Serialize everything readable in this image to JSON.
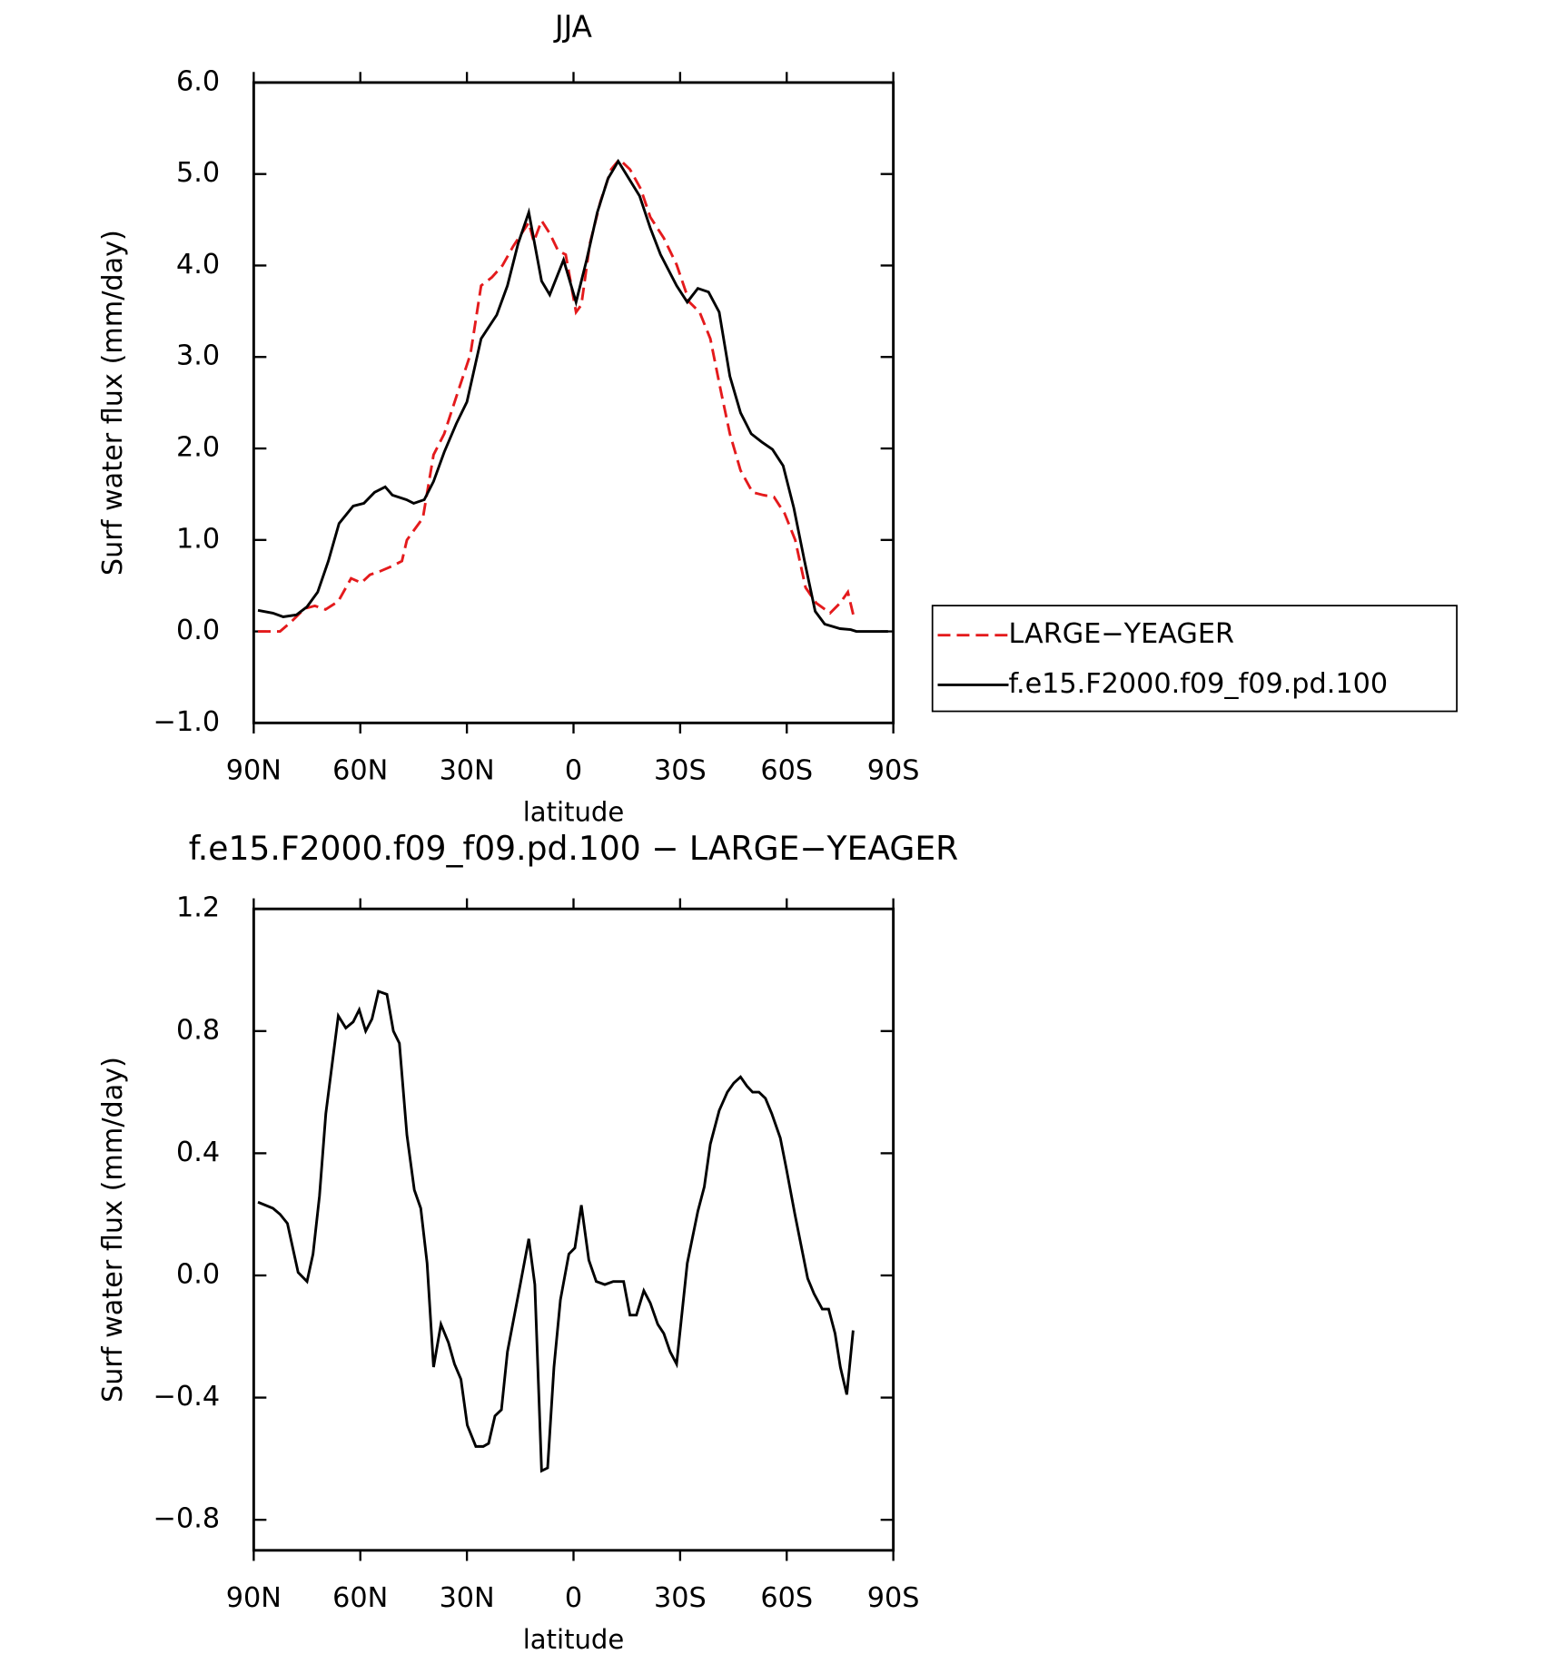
{
  "chart_data": [
    {
      "type": "line",
      "title": "JJA",
      "xlabel": "latitude",
      "ylabel": "Surf water flux (mm/day)",
      "xlim": [
        90,
        -90
      ],
      "xticks": [
        {
          "value": 90,
          "label": "90N"
        },
        {
          "value": 60,
          "label": "60N"
        },
        {
          "value": 30,
          "label": "30N"
        },
        0,
        {
          "value": -30,
          "label": "30S"
        },
        {
          "value": -60,
          "label": "60S"
        },
        {
          "value": -90,
          "label": "90S"
        }
      ],
      "ylim": [
        -1,
        6
      ],
      "yticks": [
        {
          "value": -1,
          "label": "−1.0"
        },
        {
          "value": 0,
          "label": "0.0"
        },
        {
          "value": 1,
          "label": "1.0"
        },
        {
          "value": 2,
          "label": "2.0"
        },
        {
          "value": 3,
          "label": "3.0"
        },
        {
          "value": 4,
          "label": "4.0"
        },
        {
          "value": 5,
          "label": "5.0"
        },
        {
          "value": 6,
          "label": "6.0"
        }
      ],
      "legend": "right",
      "series": [
        {
          "name": "LARGE−YEAGER",
          "color": "#e41a1c",
          "linestyle": "dashed",
          "x": [
            88.8,
            82.6,
            79.6,
            75.7,
            72.8,
            69.8,
            66.2,
            62.6,
            59.7,
            57.3,
            54.3,
            50.7,
            48.3,
            46.9,
            42.4,
            39.4,
            36.4,
            32,
            29,
            26,
            23,
            20,
            17,
            12.6,
            11.2,
            9,
            6.7,
            4.3,
            2.2,
            -0.7,
            -2.2,
            -4.6,
            -7.6,
            -10.6,
            -12.9,
            -15.9,
            -18.9,
            -21.6,
            -25.4,
            -29,
            -32.6,
            -35.5,
            -38.5,
            -41.5,
            -44,
            -47,
            -50.4,
            -53.4,
            -56.4,
            -59.4,
            -62.4,
            -65.3,
            -68.3,
            -72.2,
            -75,
            -77.2,
            -79
          ],
          "values": [
            0.0,
            0.0,
            0.1,
            0.25,
            0.28,
            0.24,
            0.33,
            0.58,
            0.53,
            0.62,
            0.66,
            0.72,
            0.77,
            1.0,
            1.24,
            1.93,
            2.16,
            2.68,
            3.03,
            3.78,
            3.87,
            4.0,
            4.21,
            4.47,
            4.26,
            4.49,
            4.35,
            4.16,
            4.12,
            3.49,
            3.57,
            4.24,
            4.7,
            5.05,
            5.16,
            5.05,
            4.84,
            4.53,
            4.3,
            4.01,
            3.6,
            3.49,
            3.2,
            2.62,
            2.16,
            1.76,
            1.52,
            1.49,
            1.47,
            1.29,
            1.0,
            0.48,
            0.31,
            0.2,
            0.31,
            0.43,
            0.14
          ]
        },
        {
          "name": "f.e15.F2000.f09_f09.pd.100",
          "color": "#000000",
          "linestyle": "solid",
          "x": [
            88.8,
            84.6,
            81.7,
            78,
            75,
            72,
            69,
            66,
            62,
            59,
            56,
            53,
            51,
            47,
            45,
            42,
            39.4,
            36.4,
            33,
            30,
            26,
            21.6,
            18.6,
            15.6,
            12.6,
            9,
            6.7,
            2.8,
            -0.7,
            -3.7,
            -6.7,
            -9.7,
            -12.6,
            -15.6,
            -18.6,
            -21.6,
            -24.5,
            -29,
            -32,
            -35,
            -38,
            -41,
            -44,
            -47,
            -50,
            -53,
            -56,
            -59,
            -62,
            -65,
            -68,
            -70.7,
            -75,
            -78,
            -79.6,
            -82.6,
            -88.5
          ],
          "values": [
            0.23,
            0.2,
            0.16,
            0.18,
            0.27,
            0.43,
            0.77,
            1.18,
            1.37,
            1.4,
            1.52,
            1.58,
            1.49,
            1.44,
            1.4,
            1.44,
            1.64,
            1.96,
            2.27,
            2.51,
            3.2,
            3.46,
            3.78,
            4.24,
            4.58,
            3.83,
            3.68,
            4.06,
            3.6,
            4.06,
            4.58,
            4.95,
            5.14,
            4.95,
            4.76,
            4.41,
            4.12,
            3.78,
            3.6,
            3.75,
            3.71,
            3.49,
            2.79,
            2.39,
            2.16,
            2.07,
            1.99,
            1.81,
            1.35,
            0.77,
            0.22,
            0.08,
            0.03,
            0.02,
            0.0,
            0.0,
            0.0
          ]
        }
      ]
    },
    {
      "type": "line",
      "title": "f.e15.F2000.f09_f09.pd.100 − LARGE−YEAGER",
      "xlabel": "latitude",
      "ylabel": "Surf water flux (mm/day)",
      "xlim": [
        90,
        -90
      ],
      "xticks": [
        {
          "value": 90,
          "label": "90N"
        },
        {
          "value": 60,
          "label": "60N"
        },
        {
          "value": 30,
          "label": "30N"
        },
        0,
        {
          "value": -30,
          "label": "30S"
        },
        {
          "value": -60,
          "label": "60S"
        },
        {
          "value": -90,
          "label": "90S"
        }
      ],
      "ylim": [
        -0.9,
        1.2
      ],
      "yticks": [
        {
          "value": -0.8,
          "label": "−0.8"
        },
        {
          "value": -0.4,
          "label": "−0.4"
        },
        {
          "value": 0,
          "label": "0.0"
        },
        0.4,
        0.8,
        1.2
      ],
      "series": [
        {
          "color": "#000000",
          "linestyle": "solid",
          "x": [
            88.8,
            84.6,
            82.6,
            80.5,
            77.5,
            75,
            73.3,
            71.5,
            69.7,
            66.2,
            64.1,
            62,
            60.3,
            58.5,
            56.7,
            54.9,
            52.5,
            50.7,
            49,
            46.9,
            44.8,
            43,
            41.2,
            39.4,
            37.3,
            35.2,
            33.5,
            31.7,
            29.9,
            27.5,
            25.4,
            23.9,
            22.1,
            20.3,
            18.6,
            15,
            12.6,
            10.9,
            9,
            7.3,
            5.5,
            3.7,
            1.3,
            -0.4,
            -2.2,
            -4.3,
            -6.4,
            -8.8,
            -11.2,
            -14.1,
            -15.9,
            -17.7,
            -19.8,
            -21.6,
            -23.7,
            -25.4,
            -27.2,
            -29,
            -32,
            -35,
            -36.8,
            -38.5,
            -41,
            -43.3,
            -45.1,
            -47,
            -48.8,
            -50.4,
            -52.2,
            -54,
            -55.8,
            -58.2,
            -59.9,
            -62.3,
            -65.9,
            -67.7,
            -70,
            -71.8,
            -73.6,
            -75.1,
            -76.9,
            -78.7
          ],
          "values": [
            0.24,
            0.22,
            0.2,
            0.17,
            0.01,
            -0.02,
            0.07,
            0.26,
            0.53,
            0.85,
            0.81,
            0.83,
            0.87,
            0.8,
            0.84,
            0.93,
            0.92,
            0.8,
            0.76,
            0.46,
            0.28,
            0.22,
            0.04,
            -0.3,
            -0.16,
            -0.22,
            -0.29,
            -0.34,
            -0.49,
            -0.56,
            -0.56,
            -0.55,
            -0.46,
            -0.44,
            -0.25,
            -0.03,
            0.12,
            -0.03,
            -0.64,
            -0.63,
            -0.3,
            -0.08,
            0.07,
            0.09,
            0.23,
            0.05,
            -0.02,
            -0.03,
            -0.02,
            -0.02,
            -0.13,
            -0.13,
            -0.05,
            -0.09,
            -0.16,
            -0.19,
            -0.25,
            -0.29,
            0.04,
            0.21,
            0.29,
            0.43,
            0.54,
            0.6,
            0.63,
            0.65,
            0.62,
            0.6,
            0.6,
            0.58,
            0.53,
            0.45,
            0.35,
            0.2,
            -0.01,
            -0.06,
            -0.11,
            -0.11,
            -0.19,
            -0.3,
            -0.39,
            -0.18
          ]
        }
      ]
    }
  ]
}
